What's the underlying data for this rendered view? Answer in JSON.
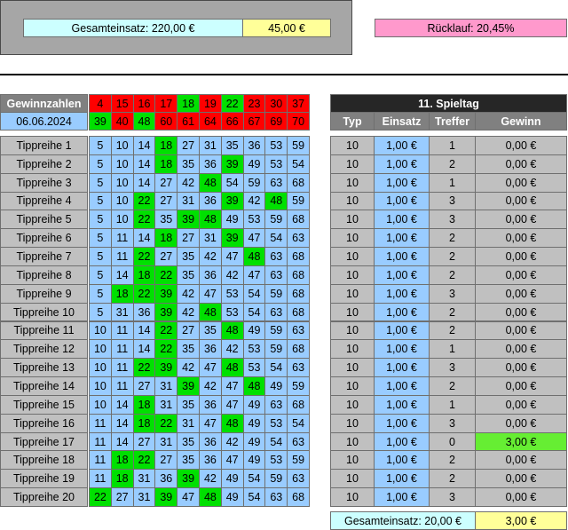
{
  "summary": {
    "total_stake": "Gesamteinsatz: 220,00 €",
    "total_win": "45,00 €",
    "return_rate": "Rücklauf: 20,45%"
  },
  "draw": {
    "label": "Gewinnzahlen",
    "date": "06.06.2024",
    "numbers": [
      [
        4,
        15,
        16,
        17,
        18,
        19,
        22,
        23,
        30,
        37
      ],
      [
        39,
        40,
        48,
        60,
        61,
        64,
        66,
        67,
        69,
        70
      ]
    ]
  },
  "matchday": {
    "title": "11. Spieltag",
    "headers": [
      "Typ",
      "Einsatz",
      "Treffer",
      "Gewinn"
    ]
  },
  "rows": [
    {
      "label": "Tippreihe 1",
      "numbers": [
        5,
        10,
        14,
        18,
        27,
        31,
        35,
        36,
        53,
        59
      ],
      "type": 10,
      "stake": "1,00 €",
      "hits": 1,
      "win": "0,00 €"
    },
    {
      "label": "Tippreihe 2",
      "numbers": [
        5,
        10,
        14,
        18,
        35,
        36,
        39,
        49,
        53,
        54
      ],
      "type": 10,
      "stake": "1,00 €",
      "hits": 2,
      "win": "0,00 €"
    },
    {
      "label": "Tippreihe 3",
      "numbers": [
        5,
        10,
        14,
        27,
        42,
        48,
        54,
        59,
        63,
        68
      ],
      "type": 10,
      "stake": "1,00 €",
      "hits": 1,
      "win": "0,00 €"
    },
    {
      "label": "Tippreihe 4",
      "numbers": [
        5,
        10,
        22,
        27,
        31,
        36,
        39,
        42,
        48,
        59
      ],
      "type": 10,
      "stake": "1,00 €",
      "hits": 3,
      "win": "0,00 €"
    },
    {
      "label": "Tippreihe 5",
      "numbers": [
        5,
        10,
        22,
        35,
        39,
        48,
        49,
        53,
        59,
        68
      ],
      "type": 10,
      "stake": "1,00 €",
      "hits": 3,
      "win": "0,00 €"
    },
    {
      "label": "Tippreihe 6",
      "numbers": [
        5,
        11,
        14,
        18,
        27,
        31,
        39,
        47,
        54,
        63
      ],
      "type": 10,
      "stake": "1,00 €",
      "hits": 2,
      "win": "0,00 €"
    },
    {
      "label": "Tippreihe 7",
      "numbers": [
        5,
        11,
        22,
        27,
        35,
        42,
        47,
        48,
        63,
        68
      ],
      "type": 10,
      "stake": "1,00 €",
      "hits": 2,
      "win": "0,00 €"
    },
    {
      "label": "Tippreihe 8",
      "numbers": [
        5,
        14,
        18,
        22,
        35,
        36,
        42,
        47,
        63,
        68
      ],
      "type": 10,
      "stake": "1,00 €",
      "hits": 2,
      "win": "0,00 €"
    },
    {
      "label": "Tippreihe 9",
      "numbers": [
        5,
        18,
        22,
        39,
        42,
        47,
        53,
        54,
        59,
        68
      ],
      "type": 10,
      "stake": "1,00 €",
      "hits": 3,
      "win": "0,00 €"
    },
    {
      "label": "Tippreihe 10",
      "numbers": [
        5,
        31,
        36,
        39,
        42,
        48,
        53,
        54,
        63,
        68
      ],
      "type": 10,
      "stake": "1,00 €",
      "hits": 2,
      "win": "0,00 €"
    },
    {
      "label": "Tippreihe 11",
      "numbers": [
        10,
        11,
        14,
        22,
        27,
        35,
        48,
        49,
        59,
        63
      ],
      "type": 10,
      "stake": "1,00 €",
      "hits": 2,
      "win": "0,00 €"
    },
    {
      "label": "Tippreihe 12",
      "numbers": [
        10,
        11,
        14,
        22,
        35,
        36,
        42,
        53,
        59,
        68
      ],
      "type": 10,
      "stake": "1,00 €",
      "hits": 1,
      "win": "0,00 €"
    },
    {
      "label": "Tippreihe 13",
      "numbers": [
        10,
        11,
        22,
        39,
        42,
        47,
        48,
        53,
        54,
        63
      ],
      "type": 10,
      "stake": "1,00 €",
      "hits": 3,
      "win": "0,00 €"
    },
    {
      "label": "Tippreihe 14",
      "numbers": [
        10,
        11,
        27,
        31,
        39,
        42,
        47,
        48,
        49,
        59
      ],
      "type": 10,
      "stake": "1,00 €",
      "hits": 2,
      "win": "0,00 €"
    },
    {
      "label": "Tippreihe 15",
      "numbers": [
        10,
        14,
        18,
        31,
        35,
        36,
        47,
        49,
        63,
        68
      ],
      "type": 10,
      "stake": "1,00 €",
      "hits": 1,
      "win": "0,00 €"
    },
    {
      "label": "Tippreihe 16",
      "numbers": [
        11,
        14,
        18,
        22,
        31,
        47,
        48,
        49,
        53,
        54
      ],
      "type": 10,
      "stake": "1,00 €",
      "hits": 3,
      "win": "0,00 €"
    },
    {
      "label": "Tippreihe 17",
      "numbers": [
        11,
        14,
        27,
        31,
        35,
        36,
        42,
        49,
        54,
        63
      ],
      "type": 10,
      "stake": "1,00 €",
      "hits": 0,
      "win": "3,00 €",
      "highlight": true
    },
    {
      "label": "Tippreihe 18",
      "numbers": [
        11,
        18,
        22,
        27,
        35,
        36,
        47,
        49,
        53,
        59
      ],
      "type": 10,
      "stake": "1,00 €",
      "hits": 2,
      "win": "0,00 €"
    },
    {
      "label": "Tippreihe 19",
      "numbers": [
        11,
        18,
        31,
        36,
        39,
        42,
        49,
        54,
        59,
        63
      ],
      "type": 10,
      "stake": "1,00 €",
      "hits": 2,
      "win": "0,00 €"
    },
    {
      "label": "Tippreihe 20",
      "numbers": [
        22,
        27,
        31,
        39,
        47,
        48,
        49,
        54,
        63,
        68
      ],
      "type": 10,
      "stake": "1,00 €",
      "hits": 3,
      "win": "0,00 €"
    }
  ],
  "footer": {
    "total_stake": "Gesamteinsatz: 20,00 €",
    "total_win": "3,00 €"
  },
  "colors": {
    "gray": "#c0c0c0",
    "blue": "#99ccff",
    "hit": "#00e000",
    "miss": "#ff0000",
    "dark": "#262626",
    "header": "#808080",
    "cyan": "#ccffff",
    "yellow": "#ffff99",
    "pink": "#ff99cc",
    "win_highlight": "#66ee33"
  }
}
